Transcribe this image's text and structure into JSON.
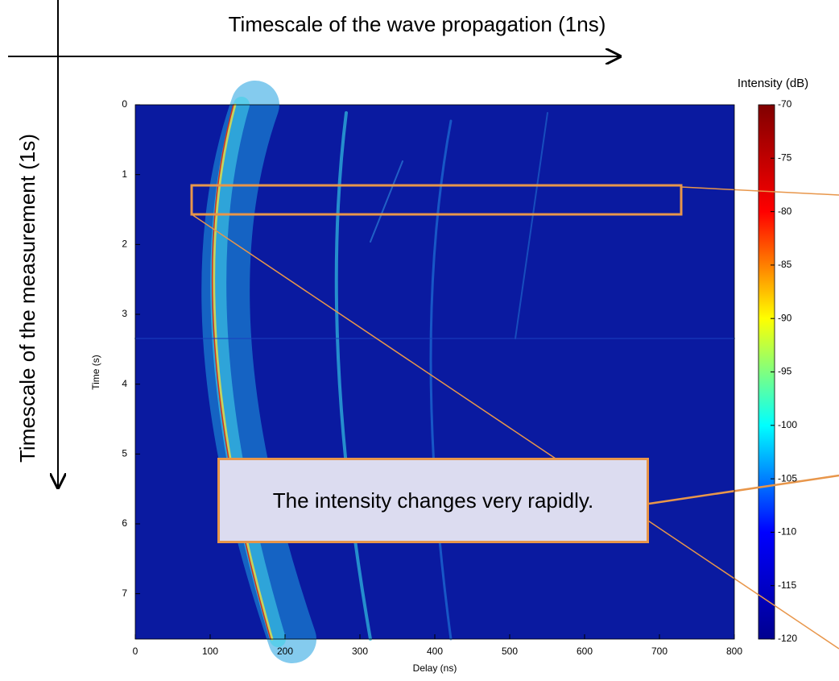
{
  "chart_data": {
    "type": "heatmap",
    "x_label": "Delay (ns)",
    "y_label": "Time (s)",
    "xlim": [
      0,
      800
    ],
    "xticks": [
      0,
      100,
      200,
      300,
      400,
      500,
      600,
      700,
      800
    ],
    "ylim": [
      0,
      7.65
    ],
    "yticks": [
      0,
      1,
      2,
      3,
      4,
      5,
      6,
      7
    ],
    "y_inverted": true,
    "colorbar": {
      "label": "Intensity (dB)",
      "lim": [
        -120,
        -70
      ],
      "ticks": [
        -70,
        -75,
        -80,
        -85,
        -90,
        -95,
        -100,
        -105,
        -110,
        -115,
        -120
      ],
      "colormap": "jet"
    }
  },
  "annotations": {
    "horizontal_arrow": "Timescale of the wave propagation (1ns)",
    "vertical_arrow": "Timescale of the measurement (1s)",
    "callout": "The intensity changes very rapidly."
  }
}
